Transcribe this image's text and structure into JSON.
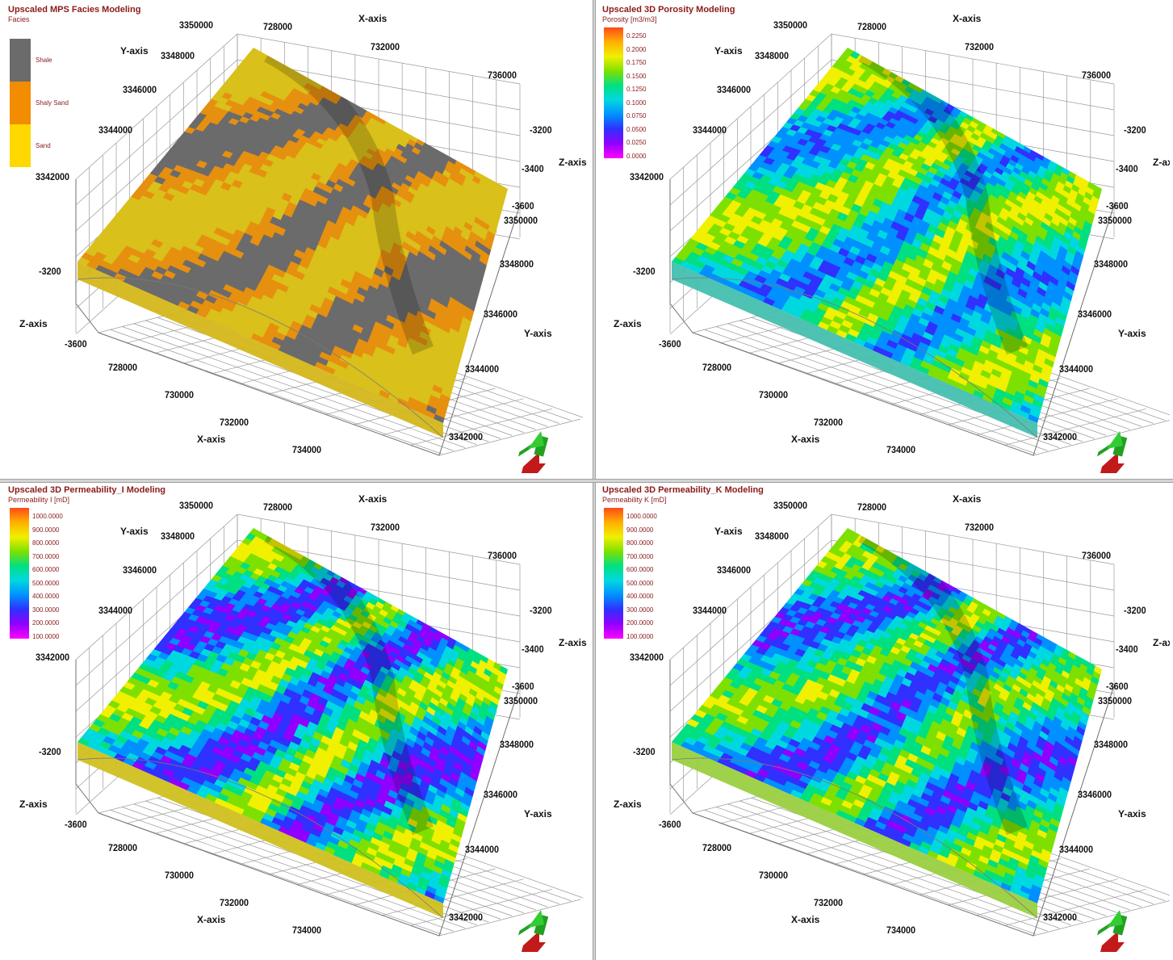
{
  "panels": [
    {
      "title": "Upscaled MPS Facies Modeling",
      "subtitle": "Facies",
      "legend_type": "categorical",
      "legend": [
        {
          "label": "Shale",
          "color": "#6b6b6b"
        },
        {
          "label": "Shaly Sand",
          "color": "#f28c00"
        },
        {
          "label": "Sand",
          "color": "#ffd800"
        }
      ],
      "labels": {
        "x_axis_top": "X-axis",
        "x_axis_bottom": "X-axis",
        "y_axis_top": "Y-axis",
        "y_axis_right": "Y-axis",
        "z_axis_right": "Z-axis",
        "z_axis_left": "Z-axis",
        "x_top": [
          "728000",
          "732000",
          "736000"
        ],
        "x_bottom": [
          "728000",
          "730000",
          "732000",
          "734000"
        ],
        "y_top": [
          "3350000",
          "3348000",
          "3346000",
          "3344000",
          "3342000"
        ],
        "y_right": [
          "3350000",
          "3348000",
          "3346000",
          "3344000",
          "3342000"
        ],
        "z_right": [
          "-3200",
          "-3400",
          "-3600"
        ],
        "z_left": [
          "-3200",
          "-3600"
        ]
      }
    },
    {
      "title": "Upscaled 3D Porosity Modeling",
      "subtitle": "Porosity [m3/m3]",
      "legend_type": "continuous",
      "legend_ticks": [
        "0.2250",
        "0.2000",
        "0.1750",
        "0.1500",
        "0.1250",
        "0.1000",
        "0.0750",
        "0.0500",
        "0.0250",
        "0.0000"
      ],
      "labels": {
        "x_axis_top": "X-axis",
        "x_axis_bottom": "X-axis",
        "y_axis_top": "Y-axis",
        "y_axis_right": "Y-axis",
        "z_axis_right": "Z-axis",
        "z_axis_left": "Z-axis",
        "x_top": [
          "728000",
          "732000",
          "736000"
        ],
        "x_bottom": [
          "728000",
          "730000",
          "732000",
          "734000"
        ],
        "y_top": [
          "3350000",
          "3348000",
          "3346000",
          "3344000",
          "3342000"
        ],
        "y_right": [
          "3350000",
          "3348000",
          "3346000",
          "3344000",
          "3342000"
        ],
        "z_right": [
          "-3200",
          "-3400",
          "-3600"
        ],
        "z_left": [
          "-3200",
          "-3600"
        ]
      }
    },
    {
      "title": "Upscaled 3D Permeability_I Modeling",
      "subtitle": "Permeability I [mD]",
      "legend_type": "continuous",
      "legend_ticks": [
        "1000.0000",
        "900.0000",
        "800.0000",
        "700.0000",
        "600.0000",
        "500.0000",
        "400.0000",
        "300.0000",
        "200.0000",
        "100.0000"
      ],
      "labels": {
        "x_axis_top": "X-axis",
        "x_axis_bottom": "X-axis",
        "y_axis_top": "Y-axis",
        "y_axis_right": "Y-axis",
        "z_axis_right": "Z-axis",
        "z_axis_left": "Z-axis",
        "x_top": [
          "728000",
          "732000",
          "736000"
        ],
        "x_bottom": [
          "728000",
          "730000",
          "732000",
          "734000"
        ],
        "y_top": [
          "3350000",
          "3348000",
          "3346000",
          "3344000",
          "3342000"
        ],
        "y_right": [
          "3350000",
          "3348000",
          "3346000",
          "3344000",
          "3342000"
        ],
        "z_right": [
          "-3200",
          "-3400",
          "-3600"
        ],
        "z_left": [
          "-3200",
          "-3600"
        ]
      }
    },
    {
      "title": "Upscaled 3D Permeability_K Modeling",
      "subtitle": "Permeability K [mD]",
      "legend_type": "continuous",
      "legend_ticks": [
        "1000.0000",
        "900.0000",
        "800.0000",
        "700.0000",
        "600.0000",
        "500.0000",
        "400.0000",
        "300.0000",
        "200.0000",
        "100.0000"
      ],
      "labels": {
        "x_axis_top": "X-axis",
        "x_axis_bottom": "X-axis",
        "y_axis_top": "Y-axis",
        "y_axis_right": "Y-axis",
        "z_axis_right": "Z-axis",
        "z_axis_left": "Z-axis",
        "x_top": [
          "728000",
          "732000",
          "736000"
        ],
        "x_bottom": [
          "728000",
          "730000",
          "732000",
          "734000"
        ],
        "y_top": [
          "3350000",
          "3348000",
          "3346000",
          "3344000",
          "3342000"
        ],
        "y_right": [
          "3350000",
          "3348000",
          "3346000",
          "3344000",
          "3342000"
        ],
        "z_right": [
          "-3200",
          "-3400",
          "-3600"
        ],
        "z_left": [
          "-3200",
          "-3600"
        ]
      }
    }
  ],
  "colors": {
    "title_text": "#8b1a1a",
    "grid_line": "#9a9a9a",
    "porosity_ramp": [
      "#ff4a1a",
      "#ffb000",
      "#f0f000",
      "#7ee000",
      "#00e080",
      "#00d8e0",
      "#0090ff",
      "#3030ff",
      "#9000ff",
      "#ff00ff"
    ],
    "orientation_arrow": "#22a022"
  },
  "icons": {
    "orientation": "north-arrow-icon"
  }
}
